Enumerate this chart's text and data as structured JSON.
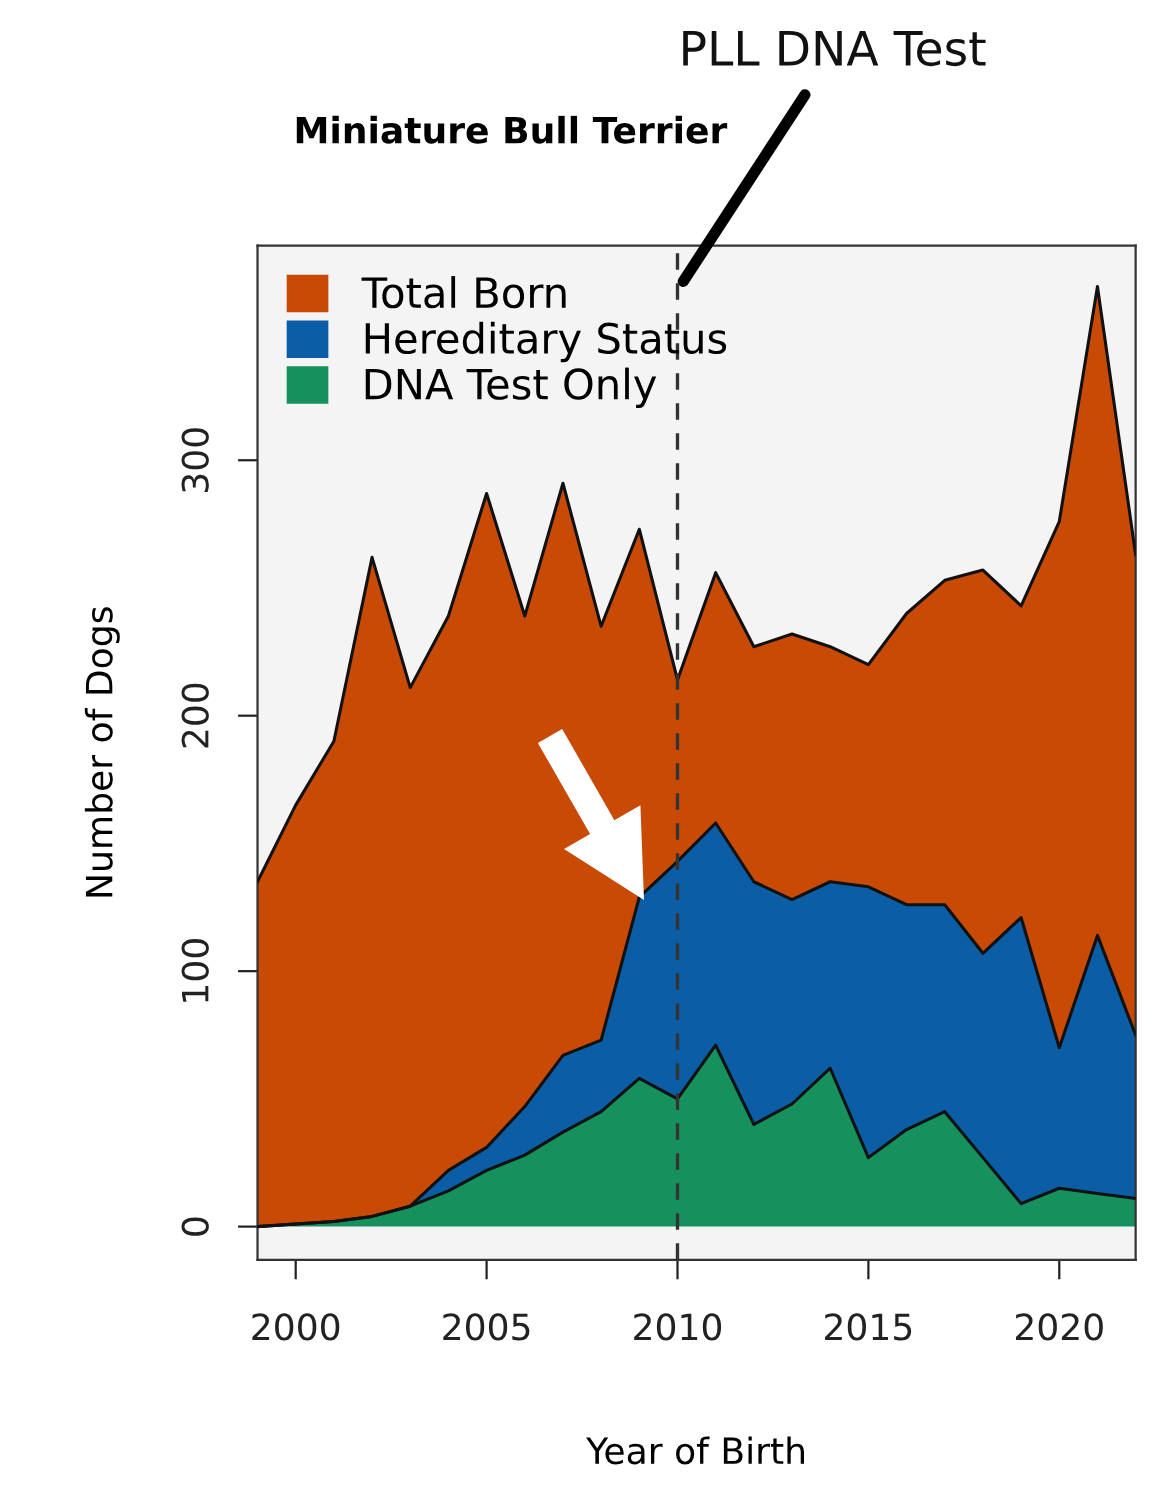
{
  "chart_data": {
    "type": "area",
    "title": "Miniature Bull Terrier",
    "xlabel": "Year of Birth",
    "ylabel": "Number of Dogs",
    "x": [
      1999,
      2000,
      2001,
      2002,
      2003,
      2004,
      2005,
      2006,
      2007,
      2008,
      2009,
      2010,
      2011,
      2012,
      2013,
      2014,
      2015,
      2016,
      2017,
      2018,
      2019,
      2020,
      2021,
      2022
    ],
    "stacked": true,
    "series": [
      {
        "name": "DNA Test Only",
        "color": "#16915e",
        "values": [
          0,
          1,
          2,
          4,
          8,
          14,
          22,
          28,
          37,
          45,
          58,
          50,
          71,
          40,
          48,
          62,
          27,
          38,
          45,
          27,
          9,
          15,
          13,
          11
        ]
      },
      {
        "name": "Hereditary Status",
        "color": "#0b5ea5",
        "values": [
          0,
          0,
          0,
          0,
          0,
          8,
          9,
          19,
          30,
          28,
          71,
          93,
          87,
          95,
          80,
          73,
          106,
          88,
          81,
          80,
          112,
          55,
          101,
          64
        ]
      },
      {
        "name": "Total Born",
        "color": "#c94a05",
        "values": [
          135,
          164,
          188,
          258,
          203,
          217,
          256,
          192,
          224,
          162,
          144,
          71,
          98,
          92,
          104,
          92,
          87,
          114,
          127,
          150,
          122,
          206,
          254,
          188
        ]
      }
    ],
    "xlim": [
      1999,
      2022
    ],
    "ylim": [
      -13,
      384
    ],
    "xticks": [
      2000,
      2005,
      2010,
      2015,
      2020
    ],
    "yticks": [
      0,
      100,
      200,
      300
    ],
    "ref_lines": [
      {
        "axis": "x",
        "value": 2010,
        "label": "PLL DNA Test",
        "line_style": "dashed",
        "color": "#333333"
      }
    ],
    "grid": false,
    "legend": "top left",
    "marker": "none"
  }
}
